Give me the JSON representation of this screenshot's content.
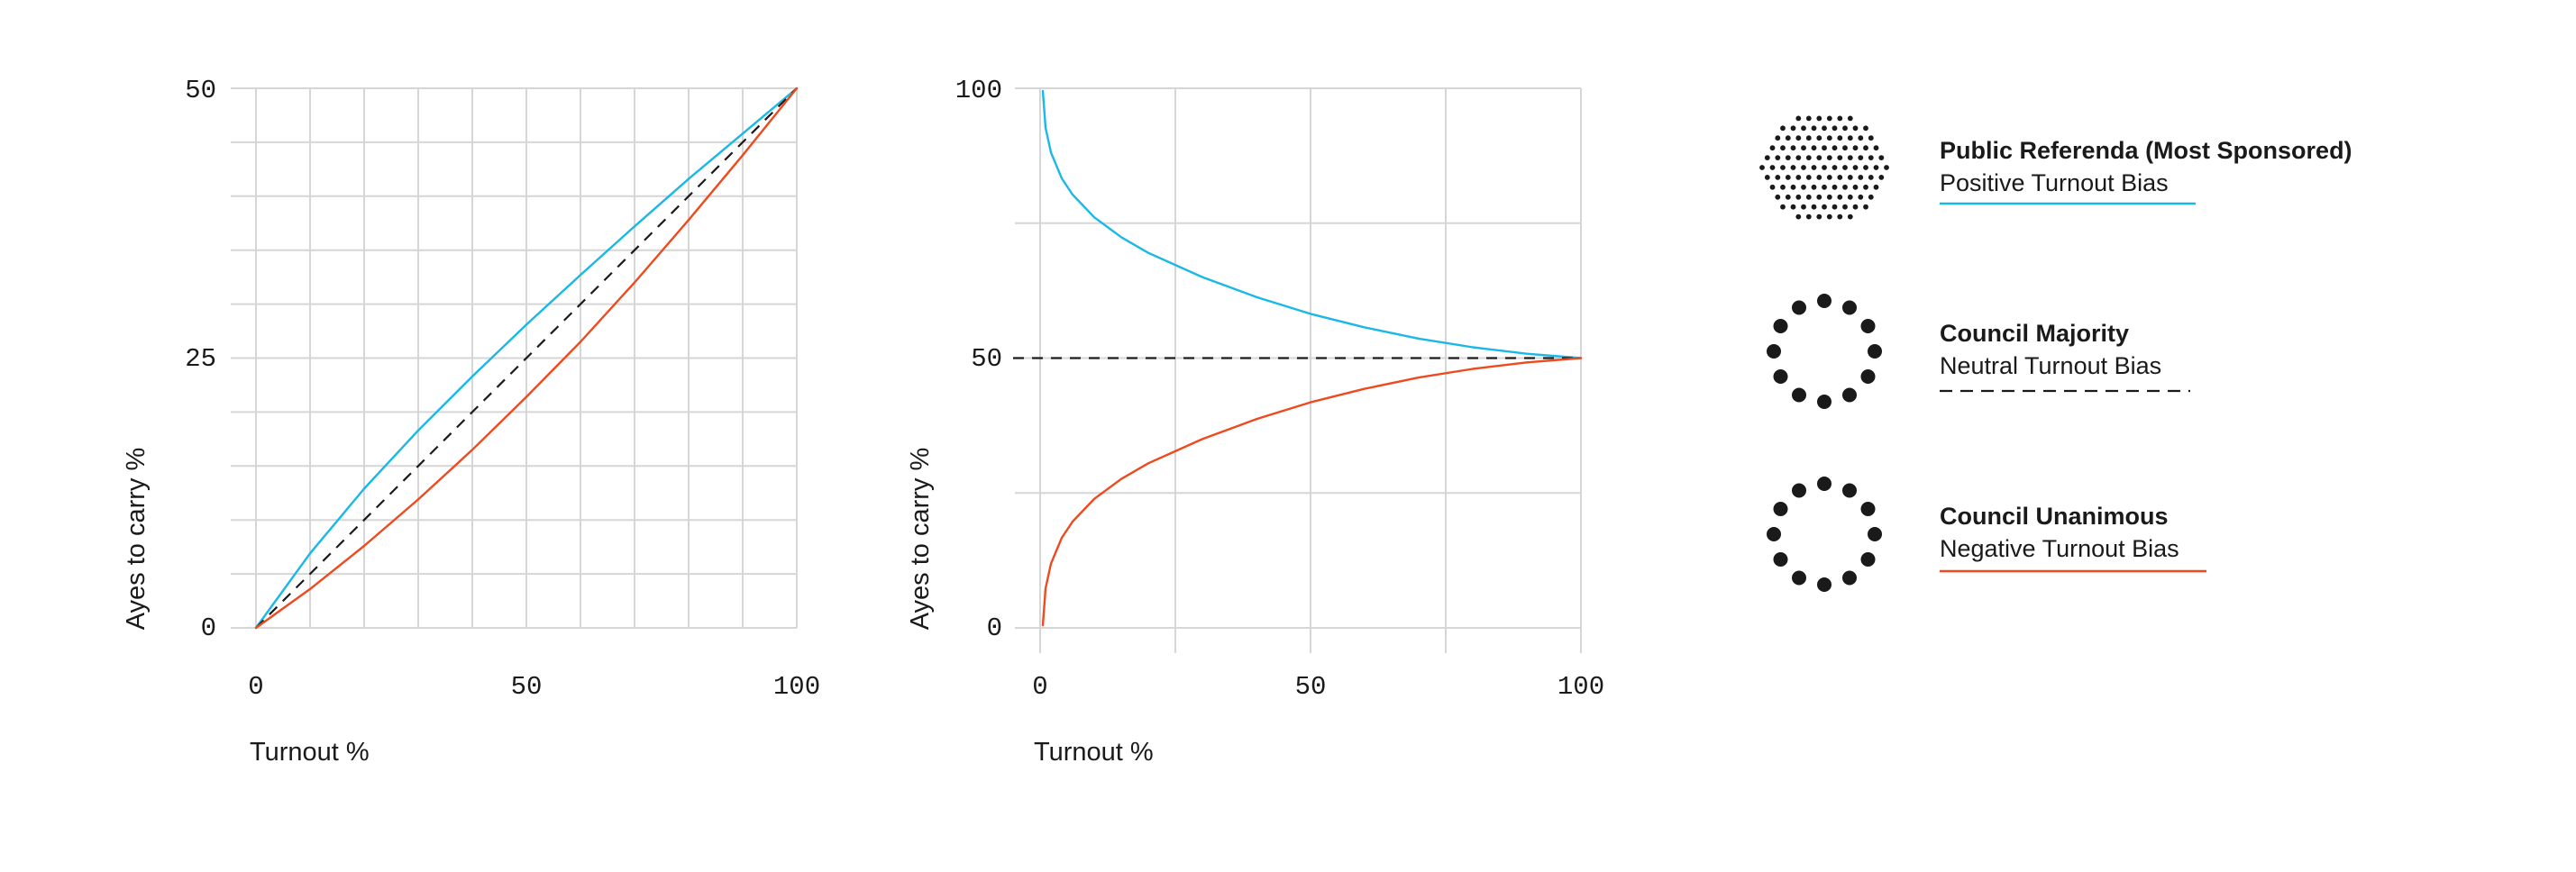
{
  "colors": {
    "positive": "#1ab8e6",
    "negative": "#ee4a1e",
    "neutral": "#1a1a1a",
    "grid": "#d6d6d6",
    "dots": "#1a1a1a"
  },
  "chart_data": [
    {
      "type": "line",
      "xlabel": "Turnout %",
      "ylabel": "Ayes to carry %",
      "xlim": [
        0,
        100
      ],
      "ylim": [
        0,
        50
      ],
      "xticks": [
        "0",
        "50",
        "100"
      ],
      "yticks": [
        "0",
        "25",
        "50"
      ],
      "grid": true,
      "series": [
        {
          "key": "positive",
          "style": "solid",
          "color": "#1ab8e6",
          "x": [
            0,
            10,
            20,
            30,
            40,
            50,
            60,
            70,
            80,
            90,
            100
          ],
          "y": [
            0,
            6.9,
            12.9,
            18.3,
            23.3,
            28.1,
            32.7,
            37.2,
            41.6,
            45.8,
            50
          ]
        },
        {
          "key": "neutral",
          "style": "dashed",
          "color": "#1a1a1a",
          "x": [
            0,
            10,
            20,
            30,
            40,
            50,
            60,
            70,
            80,
            90,
            100
          ],
          "y": [
            0,
            5,
            10,
            15,
            20,
            25,
            30,
            35,
            40,
            45,
            50
          ]
        },
        {
          "key": "negative",
          "style": "solid",
          "color": "#ee4a1e",
          "x": [
            0,
            10,
            20,
            30,
            40,
            50,
            60,
            70,
            80,
            90,
            100
          ],
          "y": [
            0,
            3.6,
            7.6,
            11.9,
            16.5,
            21.4,
            26.5,
            32.0,
            37.8,
            43.8,
            50
          ]
        }
      ]
    },
    {
      "type": "line",
      "xlabel": "Turnout %",
      "ylabel": "Ayes to carry %",
      "xlim": [
        0,
        100
      ],
      "ylim": [
        0,
        100
      ],
      "xticks": [
        "0",
        "50",
        "100"
      ],
      "yticks": [
        "0",
        "50",
        "100"
      ],
      "grid": true,
      "series": [
        {
          "key": "positive",
          "style": "solid",
          "color": "#1ab8e6",
          "x": [
            0.5,
            1,
            2,
            4,
            6,
            10,
            15,
            20,
            30,
            40,
            50,
            60,
            70,
            80,
            90,
            100
          ],
          "y": [
            99.5,
            92.7,
            88.1,
            83.3,
            80.3,
            76.1,
            72.4,
            69.5,
            65.0,
            61.3,
            58.2,
            55.7,
            53.6,
            52.0,
            50.8,
            50
          ]
        },
        {
          "key": "neutral",
          "style": "dashed",
          "color": "#1a1a1a",
          "x": [
            -5,
            100
          ],
          "y": [
            50,
            50
          ]
        },
        {
          "key": "negative",
          "style": "solid",
          "color": "#ee4a1e",
          "x": [
            0.5,
            1,
            2,
            4,
            6,
            10,
            15,
            20,
            30,
            40,
            50,
            60,
            70,
            80,
            90,
            100
          ],
          "y": [
            0.5,
            7.3,
            11.9,
            16.7,
            19.7,
            23.9,
            27.6,
            30.5,
            35.0,
            38.7,
            41.8,
            44.3,
            46.4,
            48.0,
            49.2,
            50
          ]
        }
      ]
    }
  ],
  "legend": [
    {
      "title": "Public Referenda (Most Sponsored)",
      "subtitle": "Positive Turnout Bias",
      "icon": "dense-dot-oval-icon",
      "line": "positive"
    },
    {
      "title": "Council Majority",
      "subtitle": "Neutral Turnout Bias",
      "icon": "dot-ring-icon",
      "line": "neutral"
    },
    {
      "title": "Council Unanimous",
      "subtitle": "Negative Turnout Bias",
      "icon": "dot-ring-icon",
      "line": "negative"
    }
  ]
}
